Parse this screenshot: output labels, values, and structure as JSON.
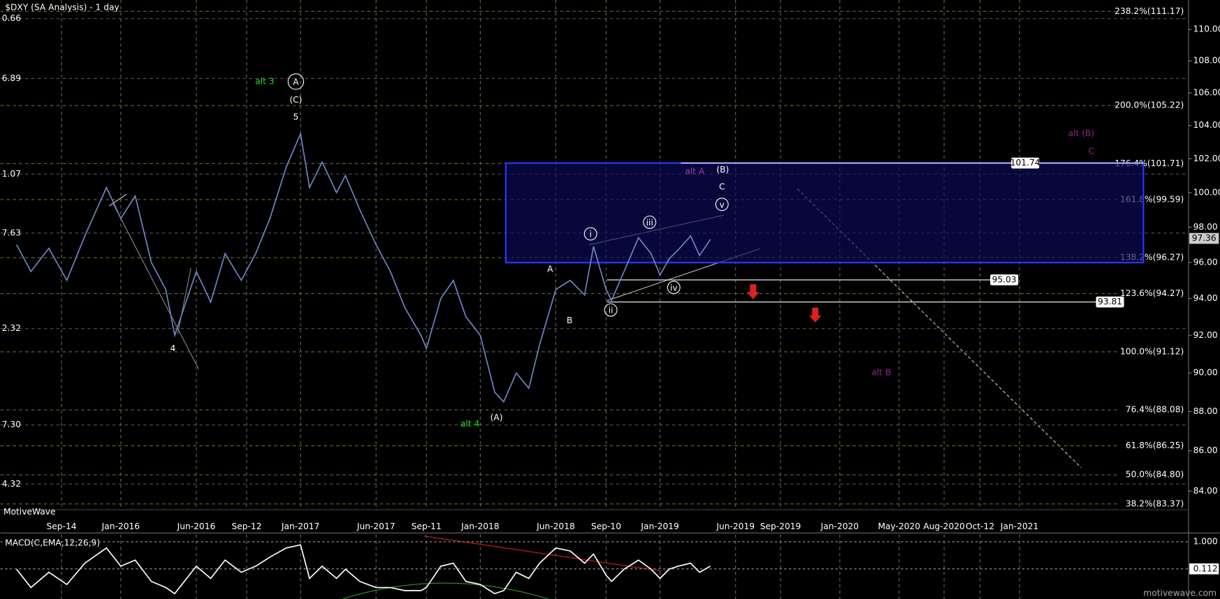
{
  "chart_data": {
    "type": "line",
    "title": "$DXY (SA Analysis) - 1 day",
    "log_scale": true,
    "grid": true,
    "color": "#6f86c6",
    "x": [
      2015.42,
      2015.5,
      2015.6,
      2015.7,
      2015.8,
      2015.92,
      2016.0,
      2016.08,
      2016.17,
      2016.25,
      2016.3,
      2016.42,
      2016.5,
      2016.58,
      2016.67,
      2016.75,
      2016.83,
      2016.92,
      2017.0,
      2017.05,
      2017.12,
      2017.2,
      2017.25,
      2017.33,
      2017.42,
      2017.5,
      2017.58,
      2017.67,
      2017.7,
      2017.78,
      2017.85,
      2017.92,
      2018.0,
      2018.08,
      2018.13,
      2018.2,
      2018.27,
      2018.33,
      2018.42,
      2018.5,
      2018.58,
      2018.63,
      2018.7,
      2018.73,
      2018.8,
      2018.88,
      2018.95,
      2019.0,
      2019.05,
      2019.1,
      2019.17,
      2019.22,
      2019.28
    ],
    "values": [
      97.0,
      95.5,
      96.8,
      95.0,
      97.5,
      100.3,
      98.5,
      99.8,
      96.0,
      94.5,
      92.0,
      95.5,
      93.8,
      96.5,
      95.0,
      96.5,
      98.5,
      101.5,
      103.5,
      100.3,
      101.8,
      100.0,
      101.0,
      99.0,
      97.0,
      95.5,
      93.5,
      92.0,
      91.3,
      94.0,
      95.0,
      93.0,
      92.0,
      89.0,
      88.5,
      90.0,
      89.2,
      91.5,
      94.5,
      95.0,
      94.2,
      96.9,
      94.5,
      93.9,
      95.5,
      97.4,
      96.5,
      95.3,
      96.2,
      96.7,
      97.5,
      96.4,
      97.3
    ],
    "xlim": [
      2015.33,
      2021.94
    ],
    "xticks": [
      {
        "value": 2015.67,
        "label": "Sep-14"
      },
      {
        "value": 2016.0,
        "label": "Jan-2016"
      },
      {
        "value": 2016.42,
        "label": "Jun-2016"
      },
      {
        "value": 2016.7,
        "label": "Sep-12"
      },
      {
        "value": 2017.0,
        "label": "Jan-2017"
      },
      {
        "value": 2017.42,
        "label": "Jun-2017"
      },
      {
        "value": 2017.7,
        "label": "Sep-11"
      },
      {
        "value": 2018.0,
        "label": "Jan-2018"
      },
      {
        "value": 2018.42,
        "label": "Jun-2018"
      },
      {
        "value": 2018.7,
        "label": "Sep-10"
      },
      {
        "value": 2019.0,
        "label": "Jan-2019"
      },
      {
        "value": 2019.42,
        "label": "Jun-2019"
      },
      {
        "value": 2019.67,
        "label": "Sep-2019"
      },
      {
        "value": 2020.0,
        "label": "Jan-2020"
      },
      {
        "value": 2020.33,
        "label": "May-2020"
      },
      {
        "value": 2020.58,
        "label": "Aug-2020"
      },
      {
        "value": 2020.78,
        "label": "Oct-12"
      },
      {
        "value": 2021.0,
        "label": "Jan-2021"
      }
    ],
    "ylim": [
      83.13,
      111.91
    ],
    "yticks": [
      {
        "value": 84,
        "label": "84.00"
      },
      {
        "value": 86,
        "label": "86.00"
      },
      {
        "value": 88,
        "label": "88.00"
      },
      {
        "value": 90,
        "label": "90.00"
      },
      {
        "value": 92,
        "label": "92.00"
      },
      {
        "value": 94,
        "label": "94.00"
      },
      {
        "value": 96,
        "label": "96.00"
      },
      {
        "value": 98,
        "label": "98.00"
      },
      {
        "value": 100,
        "label": "100.00"
      },
      {
        "value": 102,
        "label": "102.00"
      },
      {
        "value": 104,
        "label": "104.00"
      },
      {
        "value": 106,
        "label": "106.00"
      },
      {
        "value": 108,
        "label": "108.00"
      },
      {
        "value": 110,
        "label": "110.00"
      }
    ],
    "fib_levels": [
      {
        "value": 111.17,
        "label": "238.2%(111.17)"
      },
      {
        "value": 105.22,
        "label": "200.0%(105.22)"
      },
      {
        "value": 101.71,
        "label": "176.4%(101.71)"
      },
      {
        "value": 99.59,
        "label": "161.8%(99.59)"
      },
      {
        "value": 96.27,
        "label": "138.2%(96.27)"
      },
      {
        "value": 94.27,
        "label": "123.6%(94.27)"
      },
      {
        "value": 91.12,
        "label": "100.0%(91.12)"
      },
      {
        "value": 88.08,
        "label": "76.4%(88.08)"
      },
      {
        "value": 86.25,
        "label": "61.8%(86.25)"
      },
      {
        "value": 84.8,
        "label": "50.0%(84.80)"
      },
      {
        "value": 83.37,
        "label": "38.2%(83.37)"
      }
    ],
    "price_levels": [
      101.74,
      95.03,
      93.81
    ],
    "last_price": 97.36,
    "left_labels": [
      "0.66",
      "6.89",
      "1.07",
      "7.63",
      "2.32",
      "7.30",
      "4.32"
    ],
    "wave_labels": [
      "alt 3",
      "A",
      "(C)",
      "5",
      "4",
      "alt 4",
      "(A)",
      "A",
      "B",
      "i",
      "ii",
      "iii",
      "iv",
      "v",
      "alt A",
      "(B)",
      "C",
      "alt (B)",
      "C",
      "alt B"
    ],
    "watermark": "MotiveWave",
    "footer": "motivewave.com",
    "macd": {
      "type": "line",
      "title": "MACD(C,EMA,12,26,9)",
      "color": "#ffffff",
      "values": [
        0.1,
        -0.5,
        0.0,
        -0.4,
        0.3,
        0.8,
        0.2,
        0.4,
        -0.3,
        -0.5,
        -0.7,
        0.2,
        -0.2,
        0.4,
        0.0,
        0.2,
        0.5,
        0.8,
        0.9,
        -0.2,
        0.2,
        -0.2,
        0.1,
        -0.3,
        -0.5,
        -0.5,
        -0.6,
        -0.6,
        -0.5,
        0.2,
        0.3,
        -0.3,
        -0.4,
        -0.7,
        -0.6,
        0.0,
        -0.2,
        0.3,
        0.8,
        0.7,
        0.3,
        0.6,
        -0.1,
        -0.3,
        0.1,
        0.4,
        0.1,
        -0.2,
        0.1,
        0.2,
        0.3,
        0.0,
        0.2
      ],
      "ylim": [
        -0.8,
        1.24
      ],
      "yticks": [
        {
          "value": 1,
          "label": "1.000"
        },
        {
          "value": 0.112,
          "label": "0.112"
        }
      ]
    }
  }
}
